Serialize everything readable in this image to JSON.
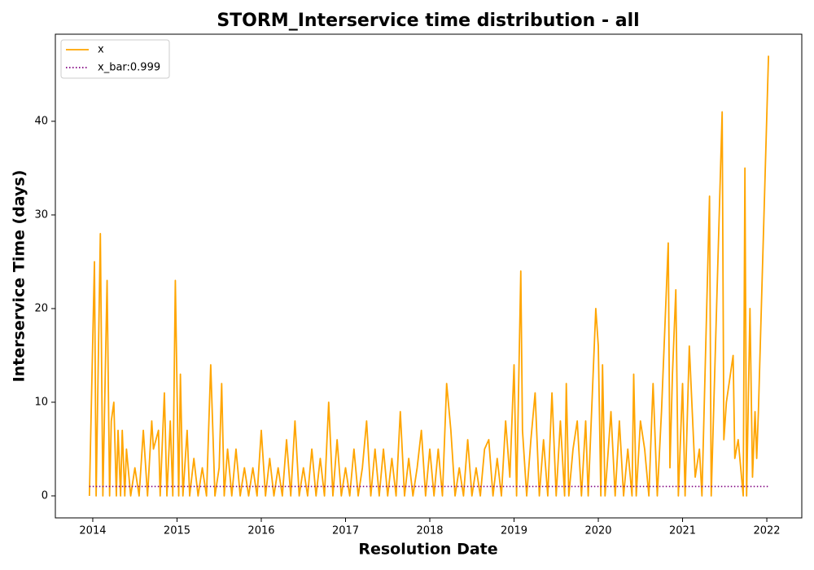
{
  "chart_data": {
    "type": "line",
    "title": "STORM_Interservice time distribution - all",
    "xlabel": "Resolution Date",
    "ylabel": "Interservice Time (days)",
    "xlim": [
      2013.556,
      2022.415
    ],
    "ylim": [
      -2.35,
      49.3
    ],
    "xticks": [
      2014,
      2015,
      2016,
      2017,
      2018,
      2019,
      2020,
      2021,
      2022
    ],
    "yticks": [
      0,
      10,
      20,
      30,
      40
    ],
    "legend": "upper left",
    "series": [
      {
        "name": "x",
        "color": "#ffa500",
        "style": "solid",
        "x": [
          2013.96,
          2014.02,
          2014.04,
          2014.09,
          2014.12,
          2014.17,
          2014.2,
          2014.22,
          2014.25,
          2014.28,
          2014.3,
          2014.33,
          2014.35,
          2014.38,
          2014.4,
          2014.45,
          2014.5,
          2014.55,
          2014.6,
          2014.65,
          2014.7,
          2014.72,
          2014.78,
          2014.8,
          2014.85,
          2014.88,
          2014.92,
          2014.95,
          2014.98,
          2015.02,
          2015.04,
          2015.07,
          2015.12,
          2015.15,
          2015.2,
          2015.25,
          2015.3,
          2015.35,
          2015.4,
          2015.45,
          2015.5,
          2015.53,
          2015.56,
          2015.6,
          2015.65,
          2015.7,
          2015.75,
          2015.8,
          2015.85,
          2015.9,
          2015.95,
          2016.0,
          2016.05,
          2016.1,
          2016.15,
          2016.2,
          2016.25,
          2016.3,
          2016.35,
          2016.4,
          2016.45,
          2016.5,
          2016.55,
          2016.6,
          2016.65,
          2016.7,
          2016.75,
          2016.8,
          2016.85,
          2016.9,
          2016.95,
          2017.0,
          2017.05,
          2017.1,
          2017.15,
          2017.2,
          2017.25,
          2017.3,
          2017.35,
          2017.4,
          2017.45,
          2017.5,
          2017.55,
          2017.6,
          2017.65,
          2017.7,
          2017.75,
          2017.8,
          2017.85,
          2017.9,
          2017.95,
          2018.0,
          2018.05,
          2018.1,
          2018.15,
          2018.2,
          2018.25,
          2018.3,
          2018.35,
          2018.4,
          2018.45,
          2018.5,
          2018.55,
          2018.6,
          2018.65,
          2018.7,
          2018.75,
          2018.8,
          2018.85,
          2018.9,
          2018.95,
          2019.0,
          2019.03,
          2019.08,
          2019.1,
          2019.15,
          2019.2,
          2019.25,
          2019.3,
          2019.35,
          2019.4,
          2019.45,
          2019.5,
          2019.55,
          2019.6,
          2019.62,
          2019.65,
          2019.7,
          2019.75,
          2019.8,
          2019.85,
          2019.88,
          2019.97,
          2020.0,
          2020.03,
          2020.05,
          2020.08,
          2020.15,
          2020.2,
          2020.25,
          2020.3,
          2020.35,
          2020.4,
          2020.42,
          2020.45,
          2020.5,
          2020.55,
          2020.6,
          2020.65,
          2020.7,
          2020.75,
          2020.83,
          2020.85,
          2020.88,
          2020.92,
          2020.95,
          2021.0,
          2021.03,
          2021.08,
          2021.15,
          2021.2,
          2021.23,
          2021.32,
          2021.34,
          2021.47,
          2021.49,
          2021.52,
          2021.6,
          2021.62,
          2021.66,
          2021.72,
          2021.74,
          2021.76,
          2021.8,
          2021.83,
          2021.86,
          2021.88,
          2021.9,
          2022.02
        ],
        "values": [
          0,
          25,
          0,
          28,
          0,
          23,
          0,
          8,
          10,
          0,
          7,
          0,
          7,
          0,
          5,
          0,
          3,
          0,
          7,
          0,
          8,
          5,
          7,
          0,
          11,
          0,
          8,
          0,
          23,
          0,
          13,
          0,
          7,
          0,
          4,
          0,
          3,
          0,
          14,
          0,
          3,
          12,
          0,
          5,
          0,
          5,
          0,
          3,
          0,
          3,
          0,
          7,
          0,
          4,
          0,
          3,
          0,
          6,
          0,
          8,
          0,
          3,
          0,
          5,
          0,
          4,
          0,
          10,
          0,
          6,
          0,
          3,
          0,
          5,
          0,
          3,
          8,
          0,
          5,
          0,
          5,
          0,
          4,
          0,
          9,
          0,
          4,
          0,
          3,
          7,
          0,
          5,
          0,
          5,
          0,
          12,
          7,
          0,
          3,
          0,
          6,
          0,
          3,
          0,
          5,
          6,
          0,
          4,
          0,
          8,
          2,
          14,
          0,
          24,
          7,
          0,
          6,
          11,
          0,
          6,
          0,
          11,
          0,
          8,
          0,
          12,
          0,
          5,
          8,
          0,
          8,
          0,
          20,
          16,
          0,
          14,
          0,
          9,
          0,
          8,
          0,
          5,
          0,
          13,
          0,
          8,
          5,
          0,
          12,
          0,
          9,
          27,
          3,
          13,
          22,
          0,
          12,
          0,
          16,
          2,
          5,
          0,
          32,
          0,
          41,
          6,
          10,
          15,
          4,
          6,
          0,
          35,
          0,
          20,
          2,
          9,
          4,
          9,
          47
        ]
      },
      {
        "name": "x_bar:0.999",
        "color": "#800080",
        "style": "dotted",
        "x": [
          2013.96,
          2022.02
        ],
        "values": [
          0.999,
          0.999
        ]
      }
    ]
  }
}
